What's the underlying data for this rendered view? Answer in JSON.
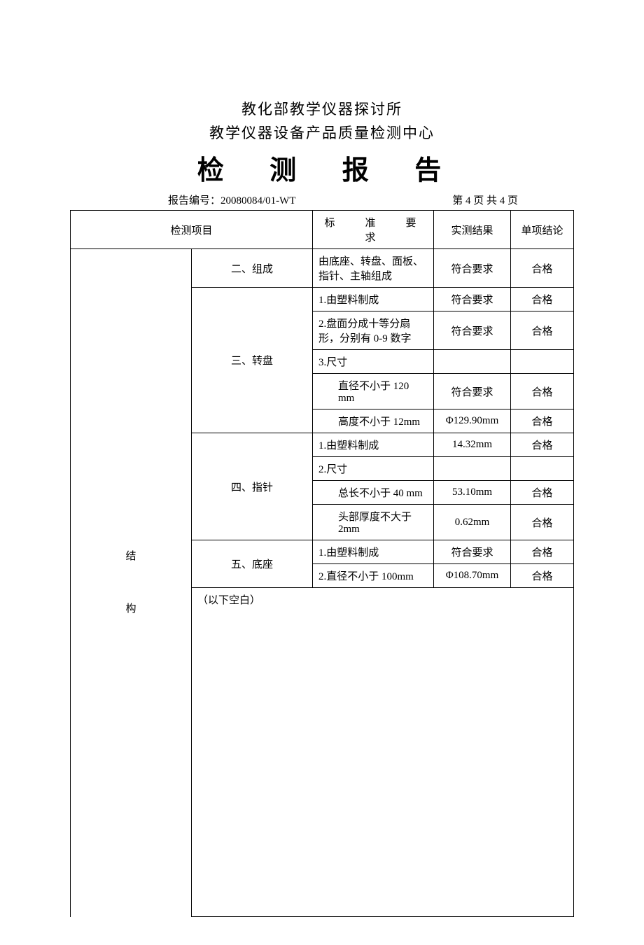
{
  "header": {
    "line1": "教化部教学仪器探讨所",
    "line2": "教学仪器设备产品质量检测中心",
    "title": "检 测 报 告"
  },
  "meta": {
    "report_label": "报告编号：",
    "report_no": "20080084/01-WT",
    "page_info": "第 4 页 共 4 页"
  },
  "table": {
    "headers": {
      "item": "检测项目",
      "standard": "标　准　要　求",
      "result": "实测结果",
      "conclusion": "单项结论"
    },
    "group_label": "结构",
    "sections": [
      {
        "category": "二、组成",
        "rows": [
          {
            "std": "由底座、转盘、面板、指针、主轴组成",
            "res": "符合要求",
            "con": "合格"
          }
        ]
      },
      {
        "category": "三、转盘",
        "rows": [
          {
            "std": "1.由塑料制成",
            "res": "符合要求",
            "con": "合格"
          },
          {
            "std": "2.盘面分成十等分扇形，分别有 0-9 数字",
            "res": "符合要求",
            "con": "合格"
          },
          {
            "std": "3.尺寸",
            "res": "",
            "con": ""
          },
          {
            "std": "直径不小于 120 mm",
            "indent": true,
            "res": "符合要求",
            "con": "合格"
          },
          {
            "std": "高度不小于 12mm",
            "indent": true,
            "res": "Φ129.90mm",
            "con": "合格"
          }
        ]
      },
      {
        "category": "四、指针",
        "rows": [
          {
            "std": "1.由塑料制成",
            "res": "14.32mm",
            "con": "合格"
          },
          {
            "std": "2.尺寸",
            "res": "",
            "con": ""
          },
          {
            "std": "总长不小于 40 mm",
            "indent": true,
            "res": "53.10mm",
            "con": "合格"
          },
          {
            "std": "头部厚度不大于 2mm",
            "indent": true,
            "res": "0.62mm",
            "con": "合格"
          }
        ]
      },
      {
        "category": "五、底座",
        "rows": [
          {
            "std": "1.由塑料制成",
            "res": "符合要求",
            "con": "合格"
          },
          {
            "std": "2.直径不小于 100mm",
            "res": "Φ108.70mm",
            "con": "合格"
          }
        ]
      }
    ]
  },
  "footer": {
    "blank_note": "（以下空白）"
  },
  "style": {
    "background": "#ffffff",
    "text_color": "#000000",
    "border_color": "#000000",
    "title_fontsize": 38,
    "body_fontsize": 15,
    "header_fontsize": 21
  }
}
